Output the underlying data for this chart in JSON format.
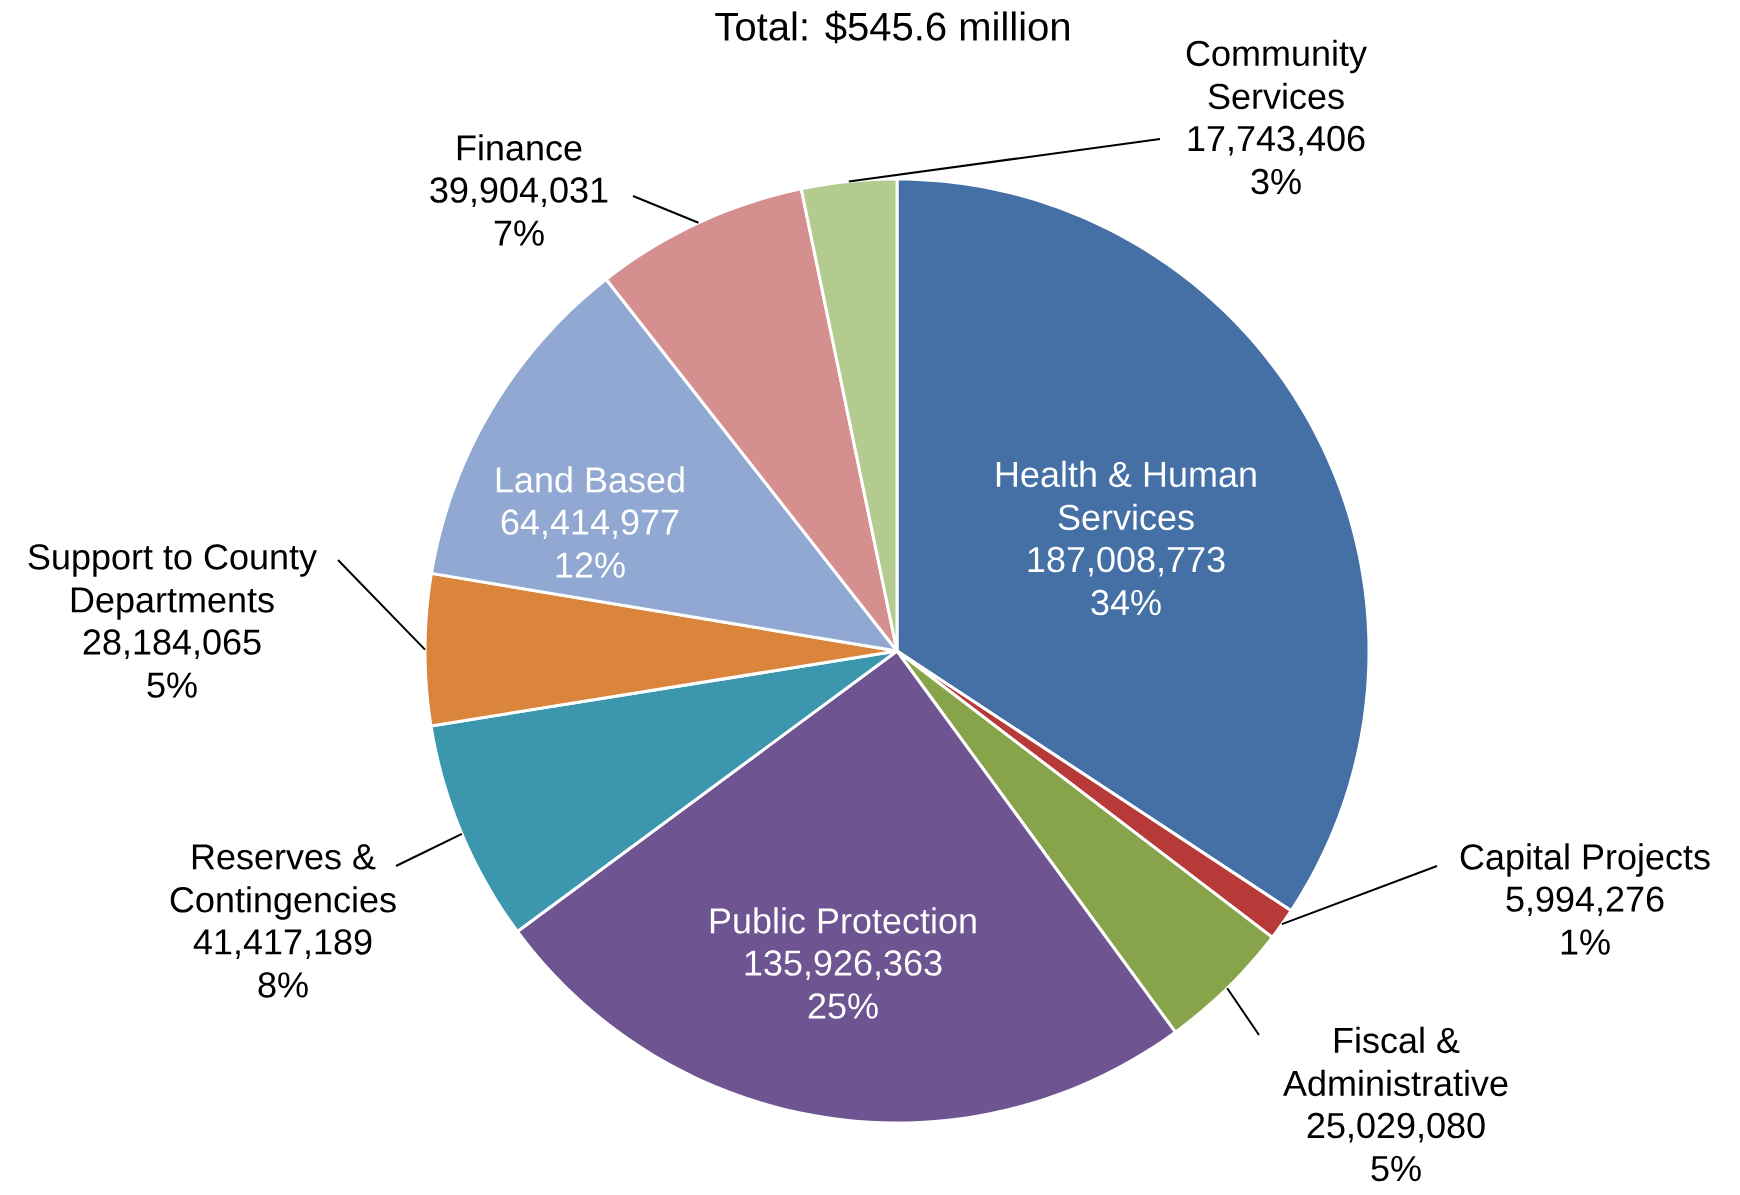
{
  "chart_data": {
    "type": "pie",
    "title": "Total: $545.6 million",
    "categories": [
      "Health & Human Services",
      "Capital Projects",
      "Fiscal & Administrative",
      "Public Protection",
      "Reserves & Contingencies",
      "Support to County Departments",
      "Land Based",
      "Finance",
      "Community Services"
    ],
    "values": [
      187008773,
      5994276,
      25029080,
      135926363,
      41417189,
      28184065,
      64414977,
      39904031,
      17743406
    ],
    "value_labels": [
      "187,008,773 34%",
      "5,994,276 1%",
      "25,029,080 5%",
      "135,926,363 25%",
      "41,417,189 8%",
      "28,184,065 5%",
      "64,414,977 12%",
      "39,904,031 7%",
      "17,743,406 3%"
    ],
    "colors": [
      "#4470a6",
      "#b73a38",
      "#87a44a",
      "#6e5490",
      "#3c97ae",
      "#db843c",
      "#91a9d2",
      "#d48f8e",
      "#b3cb8e"
    ]
  }
}
